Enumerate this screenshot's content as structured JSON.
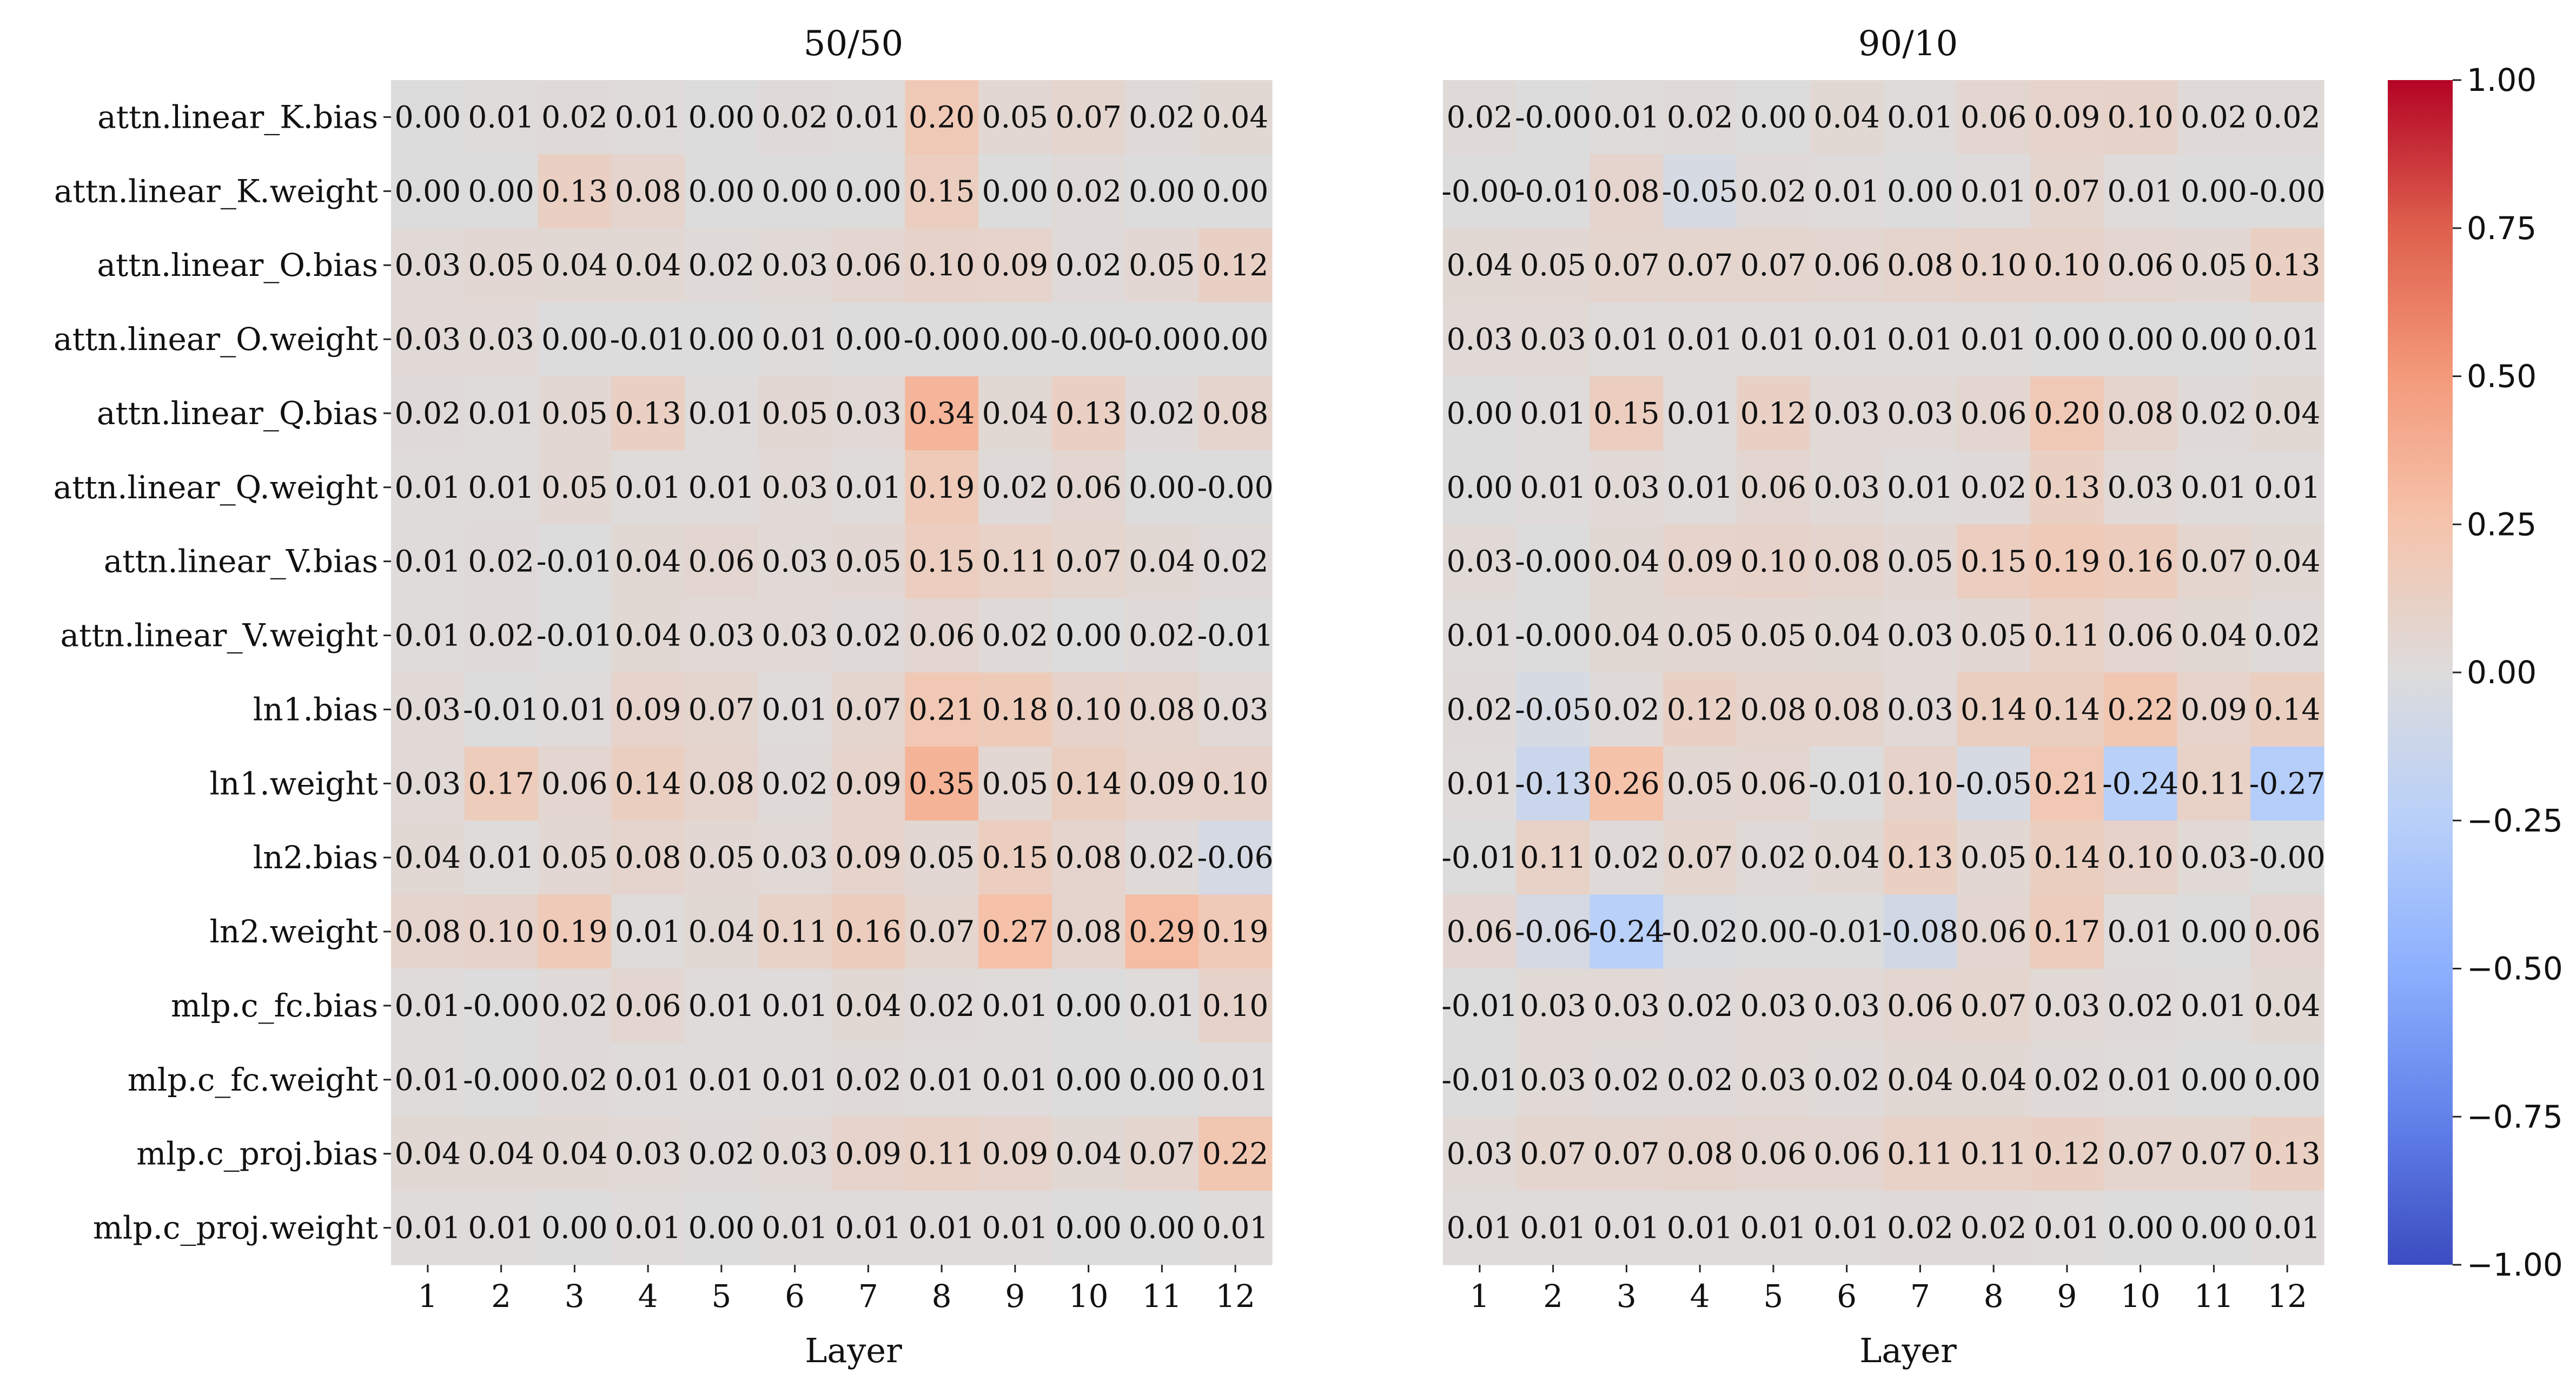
{
  "chart_data": [
    {
      "type": "heatmap",
      "title": "50/50",
      "xlabel": "Layer",
      "ylabel": "",
      "x": [
        "1",
        "2",
        "3",
        "4",
        "5",
        "6",
        "7",
        "8",
        "9",
        "10",
        "11",
        "12"
      ],
      "y": [
        "attn.linear_K.bias",
        "attn.linear_K.weight",
        "attn.linear_O.bias",
        "attn.linear_O.weight",
        "attn.linear_Q.bias",
        "attn.linear_Q.weight",
        "attn.linear_V.bias",
        "attn.linear_V.weight",
        "ln1.bias",
        "ln1.weight",
        "ln2.bias",
        "ln2.weight",
        "mlp.c_fc.bias",
        "mlp.c_fc.weight",
        "mlp.c_proj.bias",
        "mlp.c_proj.weight"
      ],
      "values": [
        [
          0.0,
          0.01,
          0.02,
          0.01,
          0.0,
          0.02,
          0.01,
          0.2,
          0.05,
          0.07,
          0.02,
          0.04
        ],
        [
          0.0,
          0.0,
          0.13,
          0.08,
          0.0,
          0.0,
          0.0,
          0.15,
          0.0,
          0.02,
          0.0,
          0.0
        ],
        [
          0.03,
          0.05,
          0.04,
          0.04,
          0.02,
          0.03,
          0.06,
          0.1,
          0.09,
          0.02,
          0.05,
          0.12
        ],
        [
          0.03,
          0.03,
          0.0,
          -0.01,
          0.0,
          0.01,
          0.0,
          -0.0,
          0.0,
          -0.0,
          -0.0,
          0.0
        ],
        [
          0.02,
          0.01,
          0.05,
          0.13,
          0.01,
          0.05,
          0.03,
          0.34,
          0.04,
          0.13,
          0.02,
          0.08
        ],
        [
          0.01,
          0.01,
          0.05,
          0.01,
          0.01,
          0.03,
          0.01,
          0.19,
          0.02,
          0.06,
          0.0,
          -0.0
        ],
        [
          0.01,
          0.02,
          -0.01,
          0.04,
          0.06,
          0.03,
          0.05,
          0.15,
          0.11,
          0.07,
          0.04,
          0.02
        ],
        [
          0.01,
          0.02,
          -0.01,
          0.04,
          0.03,
          0.03,
          0.02,
          0.06,
          0.02,
          0.0,
          0.02,
          -0.01
        ],
        [
          0.03,
          -0.01,
          0.01,
          0.09,
          0.07,
          0.01,
          0.07,
          0.21,
          0.18,
          0.1,
          0.08,
          0.03
        ],
        [
          0.03,
          0.17,
          0.06,
          0.14,
          0.08,
          0.02,
          0.09,
          0.35,
          0.05,
          0.14,
          0.09,
          0.1
        ],
        [
          0.04,
          0.01,
          0.05,
          0.08,
          0.05,
          0.03,
          0.09,
          0.05,
          0.15,
          0.08,
          0.02,
          -0.06
        ],
        [
          0.08,
          0.1,
          0.19,
          0.01,
          0.04,
          0.11,
          0.16,
          0.07,
          0.27,
          0.08,
          0.29,
          0.19
        ],
        [
          0.01,
          -0.0,
          0.02,
          0.06,
          0.01,
          0.01,
          0.04,
          0.02,
          0.01,
          0.0,
          0.01,
          0.1
        ],
        [
          0.01,
          -0.0,
          0.02,
          0.01,
          0.01,
          0.01,
          0.02,
          0.01,
          0.01,
          0.0,
          0.0,
          0.01
        ],
        [
          0.04,
          0.04,
          0.04,
          0.03,
          0.02,
          0.03,
          0.09,
          0.11,
          0.09,
          0.04,
          0.07,
          0.22
        ],
        [
          0.01,
          0.01,
          0.0,
          0.01,
          0.0,
          0.01,
          0.01,
          0.01,
          0.01,
          0.0,
          0.0,
          0.01
        ]
      ],
      "labels": [
        [
          "0.00",
          "0.01",
          "0.02",
          "0.01",
          "0.00",
          "0.02",
          "0.01",
          "0.20",
          "0.05",
          "0.07",
          "0.02",
          "0.04"
        ],
        [
          "0.00",
          "0.00",
          "0.13",
          "0.08",
          "0.00",
          "0.00",
          "0.00",
          "0.15",
          "0.00",
          "0.02",
          "0.00",
          "0.00"
        ],
        [
          "0.03",
          "0.05",
          "0.04",
          "0.04",
          "0.02",
          "0.03",
          "0.06",
          "0.10",
          "0.09",
          "0.02",
          "0.05",
          "0.12"
        ],
        [
          "0.03",
          "0.03",
          "0.00",
          "-0.01",
          "0.00",
          "0.01",
          "0.00",
          "-0.00",
          "0.00",
          "-0.00",
          "-0.00",
          "0.00"
        ],
        [
          "0.02",
          "0.01",
          "0.05",
          "0.13",
          "0.01",
          "0.05",
          "0.03",
          "0.34",
          "0.04",
          "0.13",
          "0.02",
          "0.08"
        ],
        [
          "0.01",
          "0.01",
          "0.05",
          "0.01",
          "0.01",
          "0.03",
          "0.01",
          "0.19",
          "0.02",
          "0.06",
          "0.00",
          "-0.00"
        ],
        [
          "0.01",
          "0.02",
          "-0.01",
          "0.04",
          "0.06",
          "0.03",
          "0.05",
          "0.15",
          "0.11",
          "0.07",
          "0.04",
          "0.02"
        ],
        [
          "0.01",
          "0.02",
          "-0.01",
          "0.04",
          "0.03",
          "0.03",
          "0.02",
          "0.06",
          "0.02",
          "0.00",
          "0.02",
          "-0.01"
        ],
        [
          "0.03",
          "-0.01",
          "0.01",
          "0.09",
          "0.07",
          "0.01",
          "0.07",
          "0.21",
          "0.18",
          "0.10",
          "0.08",
          "0.03"
        ],
        [
          "0.03",
          "0.17",
          "0.06",
          "0.14",
          "0.08",
          "0.02",
          "0.09",
          "0.35",
          "0.05",
          "0.14",
          "0.09",
          "0.10"
        ],
        [
          "0.04",
          "0.01",
          "0.05",
          "0.08",
          "0.05",
          "0.03",
          "0.09",
          "0.05",
          "0.15",
          "0.08",
          "0.02",
          "-0.06"
        ],
        [
          "0.08",
          "0.10",
          "0.19",
          "0.01",
          "0.04",
          "0.11",
          "0.16",
          "0.07",
          "0.27",
          "0.08",
          "0.29",
          "0.19"
        ],
        [
          "0.01",
          "-0.00",
          "0.02",
          "0.06",
          "0.01",
          "0.01",
          "0.04",
          "0.02",
          "0.01",
          "0.00",
          "0.01",
          "0.10"
        ],
        [
          "0.01",
          "-0.00",
          "0.02",
          "0.01",
          "0.01",
          "0.01",
          "0.02",
          "0.01",
          "0.01",
          "0.00",
          "0.00",
          "0.01"
        ],
        [
          "0.04",
          "0.04",
          "0.04",
          "0.03",
          "0.02",
          "0.03",
          "0.09",
          "0.11",
          "0.09",
          "0.04",
          "0.07",
          "0.22"
        ],
        [
          "0.01",
          "0.01",
          "0.00",
          "0.01",
          "0.00",
          "0.01",
          "0.01",
          "0.01",
          "0.01",
          "0.00",
          "0.00",
          "0.01"
        ]
      ]
    },
    {
      "type": "heatmap",
      "title": "90/10",
      "xlabel": "Layer",
      "ylabel": "",
      "x": [
        "1",
        "2",
        "3",
        "4",
        "5",
        "6",
        "7",
        "8",
        "9",
        "10",
        "11",
        "12"
      ],
      "y": [
        "attn.linear_K.bias",
        "attn.linear_K.weight",
        "attn.linear_O.bias",
        "attn.linear_O.weight",
        "attn.linear_Q.bias",
        "attn.linear_Q.weight",
        "attn.linear_V.bias",
        "attn.linear_V.weight",
        "ln1.bias",
        "ln1.weight",
        "ln2.bias",
        "ln2.weight",
        "mlp.c_fc.bias",
        "mlp.c_fc.weight",
        "mlp.c_proj.bias",
        "mlp.c_proj.weight"
      ],
      "values": [
        [
          0.02,
          -0.0,
          0.01,
          0.02,
          0.0,
          0.04,
          0.01,
          0.06,
          0.09,
          0.1,
          0.02,
          0.02
        ],
        [
          -0.0,
          -0.01,
          0.08,
          -0.05,
          0.02,
          0.01,
          0.0,
          0.01,
          0.07,
          0.01,
          0.0,
          -0.0
        ],
        [
          0.04,
          0.05,
          0.07,
          0.07,
          0.07,
          0.06,
          0.08,
          0.1,
          0.1,
          0.06,
          0.05,
          0.13
        ],
        [
          0.03,
          0.03,
          0.01,
          0.01,
          0.01,
          0.01,
          0.01,
          0.01,
          0.0,
          0.0,
          0.0,
          0.01
        ],
        [
          0.0,
          0.01,
          0.15,
          0.01,
          0.12,
          0.03,
          0.03,
          0.06,
          0.2,
          0.08,
          0.02,
          0.04
        ],
        [
          0.0,
          0.01,
          0.03,
          0.01,
          0.06,
          0.03,
          0.01,
          0.02,
          0.13,
          0.03,
          0.01,
          0.01
        ],
        [
          0.03,
          -0.0,
          0.04,
          0.09,
          0.1,
          0.08,
          0.05,
          0.15,
          0.19,
          0.16,
          0.07,
          0.04
        ],
        [
          0.01,
          -0.0,
          0.04,
          0.05,
          0.05,
          0.04,
          0.03,
          0.05,
          0.11,
          0.06,
          0.04,
          0.02
        ],
        [
          0.02,
          -0.05,
          0.02,
          0.12,
          0.08,
          0.08,
          0.03,
          0.14,
          0.14,
          0.22,
          0.09,
          0.14
        ],
        [
          0.01,
          -0.13,
          0.26,
          0.05,
          0.06,
          -0.01,
          0.1,
          -0.05,
          0.21,
          -0.24,
          0.11,
          -0.27
        ],
        [
          -0.01,
          0.11,
          0.02,
          0.07,
          0.02,
          0.04,
          0.13,
          0.05,
          0.14,
          0.1,
          0.03,
          -0.0
        ],
        [
          0.06,
          -0.06,
          -0.24,
          -0.02,
          0.0,
          -0.01,
          -0.08,
          0.06,
          0.17,
          0.01,
          0.0,
          0.06
        ],
        [
          -0.01,
          0.03,
          0.03,
          0.02,
          0.03,
          0.03,
          0.06,
          0.07,
          0.03,
          0.02,
          0.01,
          0.04
        ],
        [
          -0.01,
          0.03,
          0.02,
          0.02,
          0.03,
          0.02,
          0.04,
          0.04,
          0.02,
          0.01,
          0.0,
          0.0
        ],
        [
          0.03,
          0.07,
          0.07,
          0.08,
          0.06,
          0.06,
          0.11,
          0.11,
          0.12,
          0.07,
          0.07,
          0.13
        ],
        [
          0.01,
          0.01,
          0.01,
          0.01,
          0.01,
          0.01,
          0.02,
          0.02,
          0.01,
          0.0,
          0.0,
          0.01
        ]
      ],
      "labels": [
        [
          "0.02",
          "-0.00",
          "0.01",
          "0.02",
          "0.00",
          "0.04",
          "0.01",
          "0.06",
          "0.09",
          "0.10",
          "0.02",
          "0.02"
        ],
        [
          "-0.00",
          "-0.01",
          "0.08",
          "-0.05",
          "0.02",
          "0.01",
          "0.00",
          "0.01",
          "0.07",
          "0.01",
          "0.00",
          "-0.00"
        ],
        [
          "0.04",
          "0.05",
          "0.07",
          "0.07",
          "0.07",
          "0.06",
          "0.08",
          "0.10",
          "0.10",
          "0.06",
          "0.05",
          "0.13"
        ],
        [
          "0.03",
          "0.03",
          "0.01",
          "0.01",
          "0.01",
          "0.01",
          "0.01",
          "0.01",
          "0.00",
          "0.00",
          "0.00",
          "0.01"
        ],
        [
          "0.00",
          "0.01",
          "0.15",
          "0.01",
          "0.12",
          "0.03",
          "0.03",
          "0.06",
          "0.20",
          "0.08",
          "0.02",
          "0.04"
        ],
        [
          "0.00",
          "0.01",
          "0.03",
          "0.01",
          "0.06",
          "0.03",
          "0.01",
          "0.02",
          "0.13",
          "0.03",
          "0.01",
          "0.01"
        ],
        [
          "0.03",
          "-0.00",
          "0.04",
          "0.09",
          "0.10",
          "0.08",
          "0.05",
          "0.15",
          "0.19",
          "0.16",
          "0.07",
          "0.04"
        ],
        [
          "0.01",
          "-0.00",
          "0.04",
          "0.05",
          "0.05",
          "0.04",
          "0.03",
          "0.05",
          "0.11",
          "0.06",
          "0.04",
          "0.02"
        ],
        [
          "0.02",
          "-0.05",
          "0.02",
          "0.12",
          "0.08",
          "0.08",
          "0.03",
          "0.14",
          "0.14",
          "0.22",
          "0.09",
          "0.14"
        ],
        [
          "0.01",
          "-0.13",
          "0.26",
          "0.05",
          "0.06",
          "-0.01",
          "0.10",
          "-0.05",
          "0.21",
          "-0.24",
          "0.11",
          "-0.27"
        ],
        [
          "-0.01",
          "0.11",
          "0.02",
          "0.07",
          "0.02",
          "0.04",
          "0.13",
          "0.05",
          "0.14",
          "0.10",
          "0.03",
          "-0.00"
        ],
        [
          "0.06",
          "-0.06",
          "-0.24",
          "-0.02",
          "0.00",
          "-0.01",
          "-0.08",
          "0.06",
          "0.17",
          "0.01",
          "0.00",
          "0.06"
        ],
        [
          "-0.01",
          "0.03",
          "0.03",
          "0.02",
          "0.03",
          "0.03",
          "0.06",
          "0.07",
          "0.03",
          "0.02",
          "0.01",
          "0.04"
        ],
        [
          "-0.01",
          "0.03",
          "0.02",
          "0.02",
          "0.03",
          "0.02",
          "0.04",
          "0.04",
          "0.02",
          "0.01",
          "0.00",
          "0.00"
        ],
        [
          "0.03",
          "0.07",
          "0.07",
          "0.08",
          "0.06",
          "0.06",
          "0.11",
          "0.11",
          "0.12",
          "0.07",
          "0.07",
          "0.13"
        ],
        [
          "0.01",
          "0.01",
          "0.01",
          "0.01",
          "0.01",
          "0.01",
          "0.02",
          "0.02",
          "0.01",
          "0.00",
          "0.00",
          "0.01"
        ]
      ]
    }
  ],
  "colorbar": {
    "colormap": "coolwarm",
    "vmin": -1.0,
    "vmax": 1.0,
    "ticks": [
      1.0,
      0.75,
      0.5,
      0.25,
      0.0,
      -0.25,
      -0.5,
      -0.75,
      -1.0
    ],
    "tick_labels": [
      "1.00",
      "0.75",
      "0.50",
      "0.25",
      "0.00",
      "−0.25",
      "−0.50",
      "−0.75",
      "−1.00"
    ]
  }
}
